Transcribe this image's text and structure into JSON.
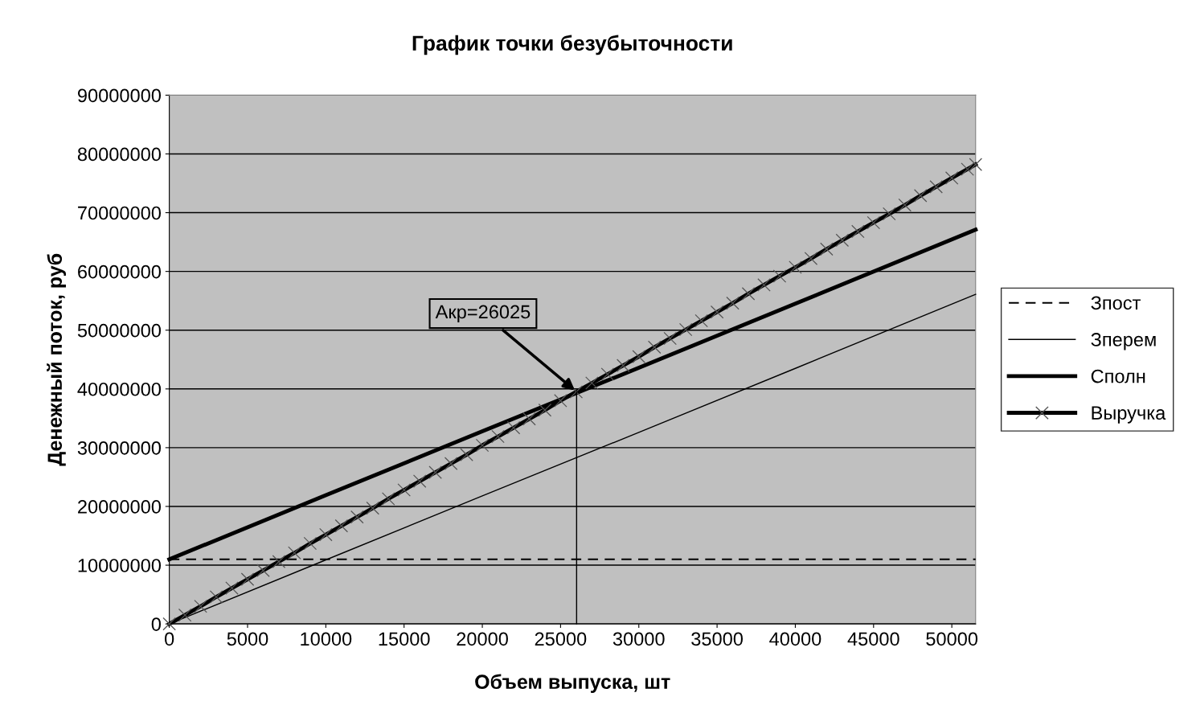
{
  "chart_data": {
    "type": "line",
    "title": "График точки безубыточности",
    "xlabel": "Объем выпуска, шт",
    "ylabel": "Денежный поток, руб",
    "xlim": [
      0,
      51520
    ],
    "xticks": [
      0,
      5000,
      10000,
      15000,
      20000,
      25000,
      30000,
      35000,
      40000,
      45000,
      50000
    ],
    "ylim": [
      0,
      90000000
    ],
    "yticks": [
      0,
      10000000,
      20000000,
      30000000,
      40000000,
      50000000,
      60000000,
      70000000,
      80000000,
      90000000
    ],
    "grid": "y",
    "legend": "right",
    "series": [
      {
        "name": "Зпост",
        "color": "#000000",
        "line_style": "dashed",
        "marker": "none",
        "x": [
          0,
          51520
        ],
        "values": [
          11000000,
          11000000
        ]
      },
      {
        "name": "Зперем",
        "color": "#000000",
        "line_style": "solid",
        "marker": "none",
        "x": [
          0,
          10000,
          20000,
          30000,
          40000,
          51520
        ],
        "values": [
          0,
          10900000,
          21800000,
          32600000,
          43500000,
          56100000
        ]
      },
      {
        "name": "Сполн",
        "color": "#000000",
        "line_style": "solid",
        "marker": "none",
        "x": [
          0,
          10000,
          20000,
          30000,
          40000,
          51520
        ],
        "values": [
          11000000,
          21900000,
          32800000,
          43600000,
          54500000,
          67100000
        ]
      },
      {
        "name": "Выручка",
        "color": "#000000",
        "line_style": "solid",
        "marker": "cross",
        "x": [
          0,
          1000,
          2000,
          3000,
          4000,
          5000,
          6000,
          7000,
          8000,
          9000,
          10000,
          11000,
          12000,
          13000,
          14000,
          15000,
          16000,
          17000,
          18000,
          19000,
          20000,
          21000,
          22000,
          23000,
          24000,
          25000,
          26000,
          27000,
          28000,
          29000,
          30000,
          31000,
          32000,
          33000,
          34000,
          35000,
          36000,
          37000,
          38000,
          39000,
          40000,
          41000,
          42000,
          43000,
          44000,
          45000,
          46000,
          47000,
          48000,
          49000,
          50000,
          51000,
          51520
        ],
        "values": [
          0,
          1500000,
          3000000,
          4600000,
          6100000,
          7600000,
          9100000,
          10600000,
          12100000,
          13700000,
          15200000,
          16700000,
          18200000,
          19700000,
          21300000,
          22800000,
          24300000,
          25800000,
          27300000,
          28800000,
          30400000,
          31900000,
          33400000,
          34900000,
          36400000,
          38000000,
          39500000,
          41000000,
          42500000,
          44000000,
          45500000,
          47100000,
          48600000,
          50100000,
          51600000,
          53100000,
          54600000,
          56200000,
          57700000,
          59200000,
          60700000,
          62200000,
          63800000,
          65300000,
          66800000,
          68300000,
          69800000,
          71300000,
          72900000,
          74400000,
          75900000,
          77400000,
          78200000
        ]
      },
      {
        "color": "#000000",
        "line_style": "solid",
        "marker": "none",
        "x": [
          26025,
          26025
        ],
        "values": [
          0,
          39500000
        ]
      }
    ],
    "annotations": [
      {
        "text": "Акр=26025",
        "x": 26025,
        "y": 39500000
      }
    ]
  }
}
